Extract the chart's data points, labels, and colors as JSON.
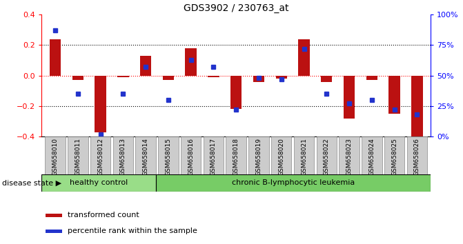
{
  "title": "GDS3902 / 230763_at",
  "samples": [
    "GSM658010",
    "GSM658011",
    "GSM658012",
    "GSM658013",
    "GSM658014",
    "GSM658015",
    "GSM658016",
    "GSM658017",
    "GSM658018",
    "GSM658019",
    "GSM658020",
    "GSM658021",
    "GSM658022",
    "GSM658023",
    "GSM658024",
    "GSM658025",
    "GSM658026"
  ],
  "red_values": [
    0.24,
    -0.03,
    -0.37,
    -0.01,
    0.13,
    -0.03,
    0.18,
    -0.01,
    -0.22,
    -0.04,
    -0.02,
    0.24,
    -0.04,
    -0.28,
    -0.03,
    -0.25,
    -0.4
  ],
  "blue_pct": [
    87,
    35,
    2,
    35,
    57,
    30,
    63,
    57,
    22,
    48,
    47,
    72,
    35,
    27,
    30,
    22,
    18
  ],
  "healthy_count": 5,
  "ylim": [
    -0.4,
    0.4
  ],
  "right_ylim": [
    0,
    100
  ],
  "bar_color": "#bb1111",
  "blue_color": "#2233cc",
  "healthy_color": "#99dd88",
  "leukemia_color": "#77cc66",
  "healthy_label": "healthy control",
  "leukemia_label": "chronic B-lymphocytic leukemia",
  "disease_state_label": "disease state",
  "legend1": "transformed count",
  "legend2": "percentile rank within the sample",
  "yticks_left": [
    -0.4,
    -0.2,
    0.0,
    0.2,
    0.4
  ],
  "yticks_right": [
    0,
    25,
    50,
    75,
    100
  ]
}
